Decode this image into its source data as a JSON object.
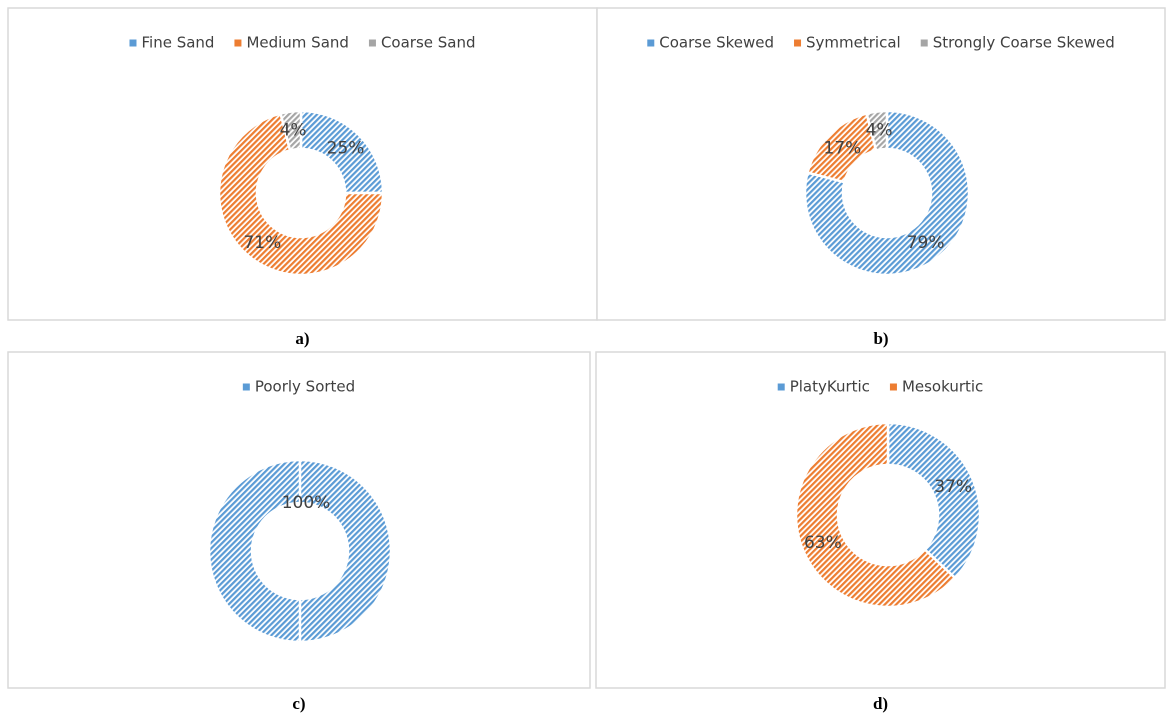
{
  "chart_data": [
    {
      "type": "donut",
      "caption": "a)",
      "categories": [
        "Fine Sand",
        "Medium Sand",
        "Coarse Sand"
      ],
      "values": [
        25,
        71,
        4
      ],
      "value_labels": [
        "25%",
        "71%",
        "4%"
      ],
      "colors": [
        "#5b9bd5",
        "#ed7d31",
        "#a5a5a5"
      ],
      "legend": "top"
    },
    {
      "type": "donut",
      "caption": "b)",
      "categories": [
        "Coarse Skewed",
        "Symmetrical",
        "Strongly Coarse Skewed"
      ],
      "values": [
        79,
        17,
        4
      ],
      "value_labels": [
        "79%",
        "17%",
        "4%"
      ],
      "colors": [
        "#5b9bd5",
        "#ed7d31",
        "#a5a5a5"
      ],
      "legend": "top"
    },
    {
      "type": "donut",
      "caption": "c)",
      "categories": [
        "Poorly Sorted"
      ],
      "values": [
        100
      ],
      "value_labels": [
        "100%"
      ],
      "colors": [
        "#5b9bd5"
      ],
      "legend": "top"
    },
    {
      "type": "donut",
      "caption": "d)",
      "categories": [
        "PlatyKurtic",
        "Mesokurtic"
      ],
      "values": [
        37,
        63
      ],
      "value_labels": [
        "37%",
        "63%"
      ],
      "colors": [
        "#5b9bd5",
        "#ed7d31"
      ],
      "legend": "top"
    }
  ]
}
